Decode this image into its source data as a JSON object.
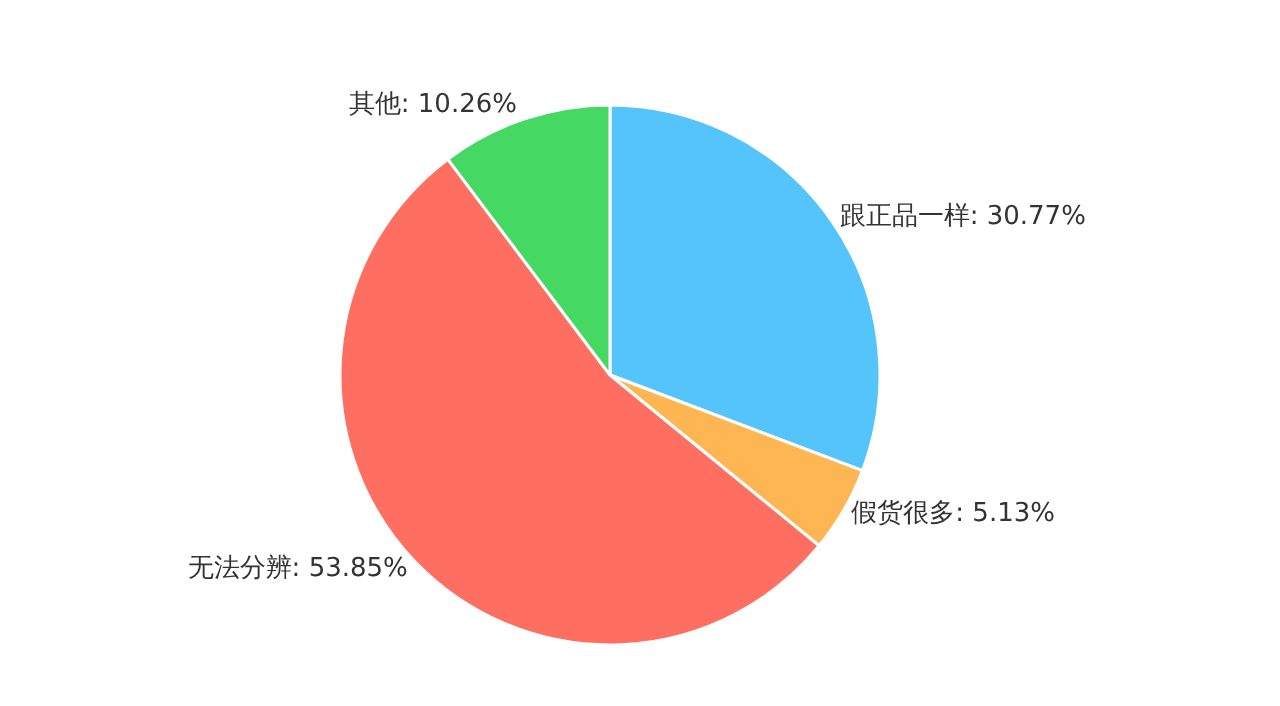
{
  "chart_data": {
    "type": "pie",
    "categories": [
      "跟正品一样",
      "假货很多",
      "无法分辨",
      "其他"
    ],
    "values": [
      30.77,
      5.13,
      53.85,
      10.26
    ],
    "colors": [
      "#55c4fa",
      "#feb653",
      "#fe6f61",
      "#45d862"
    ],
    "value_labels": [
      "30.77%",
      "5.13%",
      "53.85%",
      "10.26%"
    ],
    "legend": false
  }
}
